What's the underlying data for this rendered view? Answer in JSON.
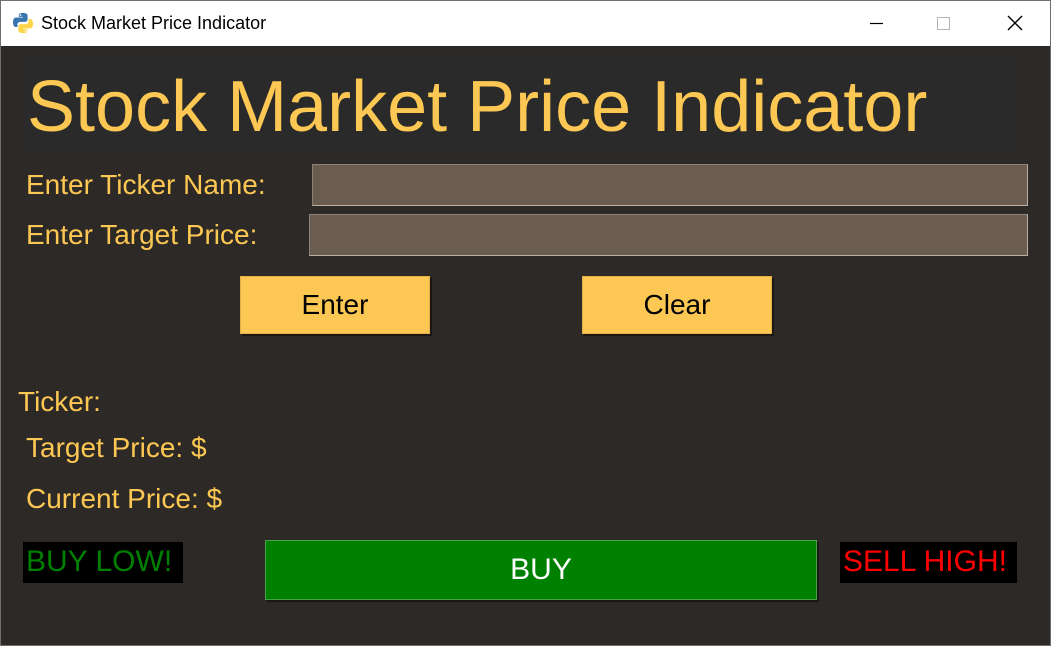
{
  "window": {
    "title": "Stock Market Price Indicator",
    "controls": {
      "minimize": "minimize-icon",
      "maximize": "maximize-icon",
      "close": "close-icon"
    }
  },
  "banner": {
    "title": "Stock Market Price Indicator"
  },
  "form": {
    "ticker_label": "Enter Ticker Name:",
    "ticker_value": "",
    "target_label": "Enter Target Price:",
    "target_value": ""
  },
  "buttons": {
    "enter": "Enter",
    "clear": "Clear",
    "buy": "BUY"
  },
  "info": {
    "ticker": "Ticker:",
    "target_price": "Target Price: $",
    "current_price": "Current Price: $"
  },
  "indicators": {
    "buy_low": "BUY LOW!",
    "sell_high": "SELL HIGH!"
  },
  "colors": {
    "background": "#2d2926",
    "accent": "#fcc853",
    "entry": "#6a5c51",
    "buy": "#008000",
    "sell": "#ff0000"
  }
}
